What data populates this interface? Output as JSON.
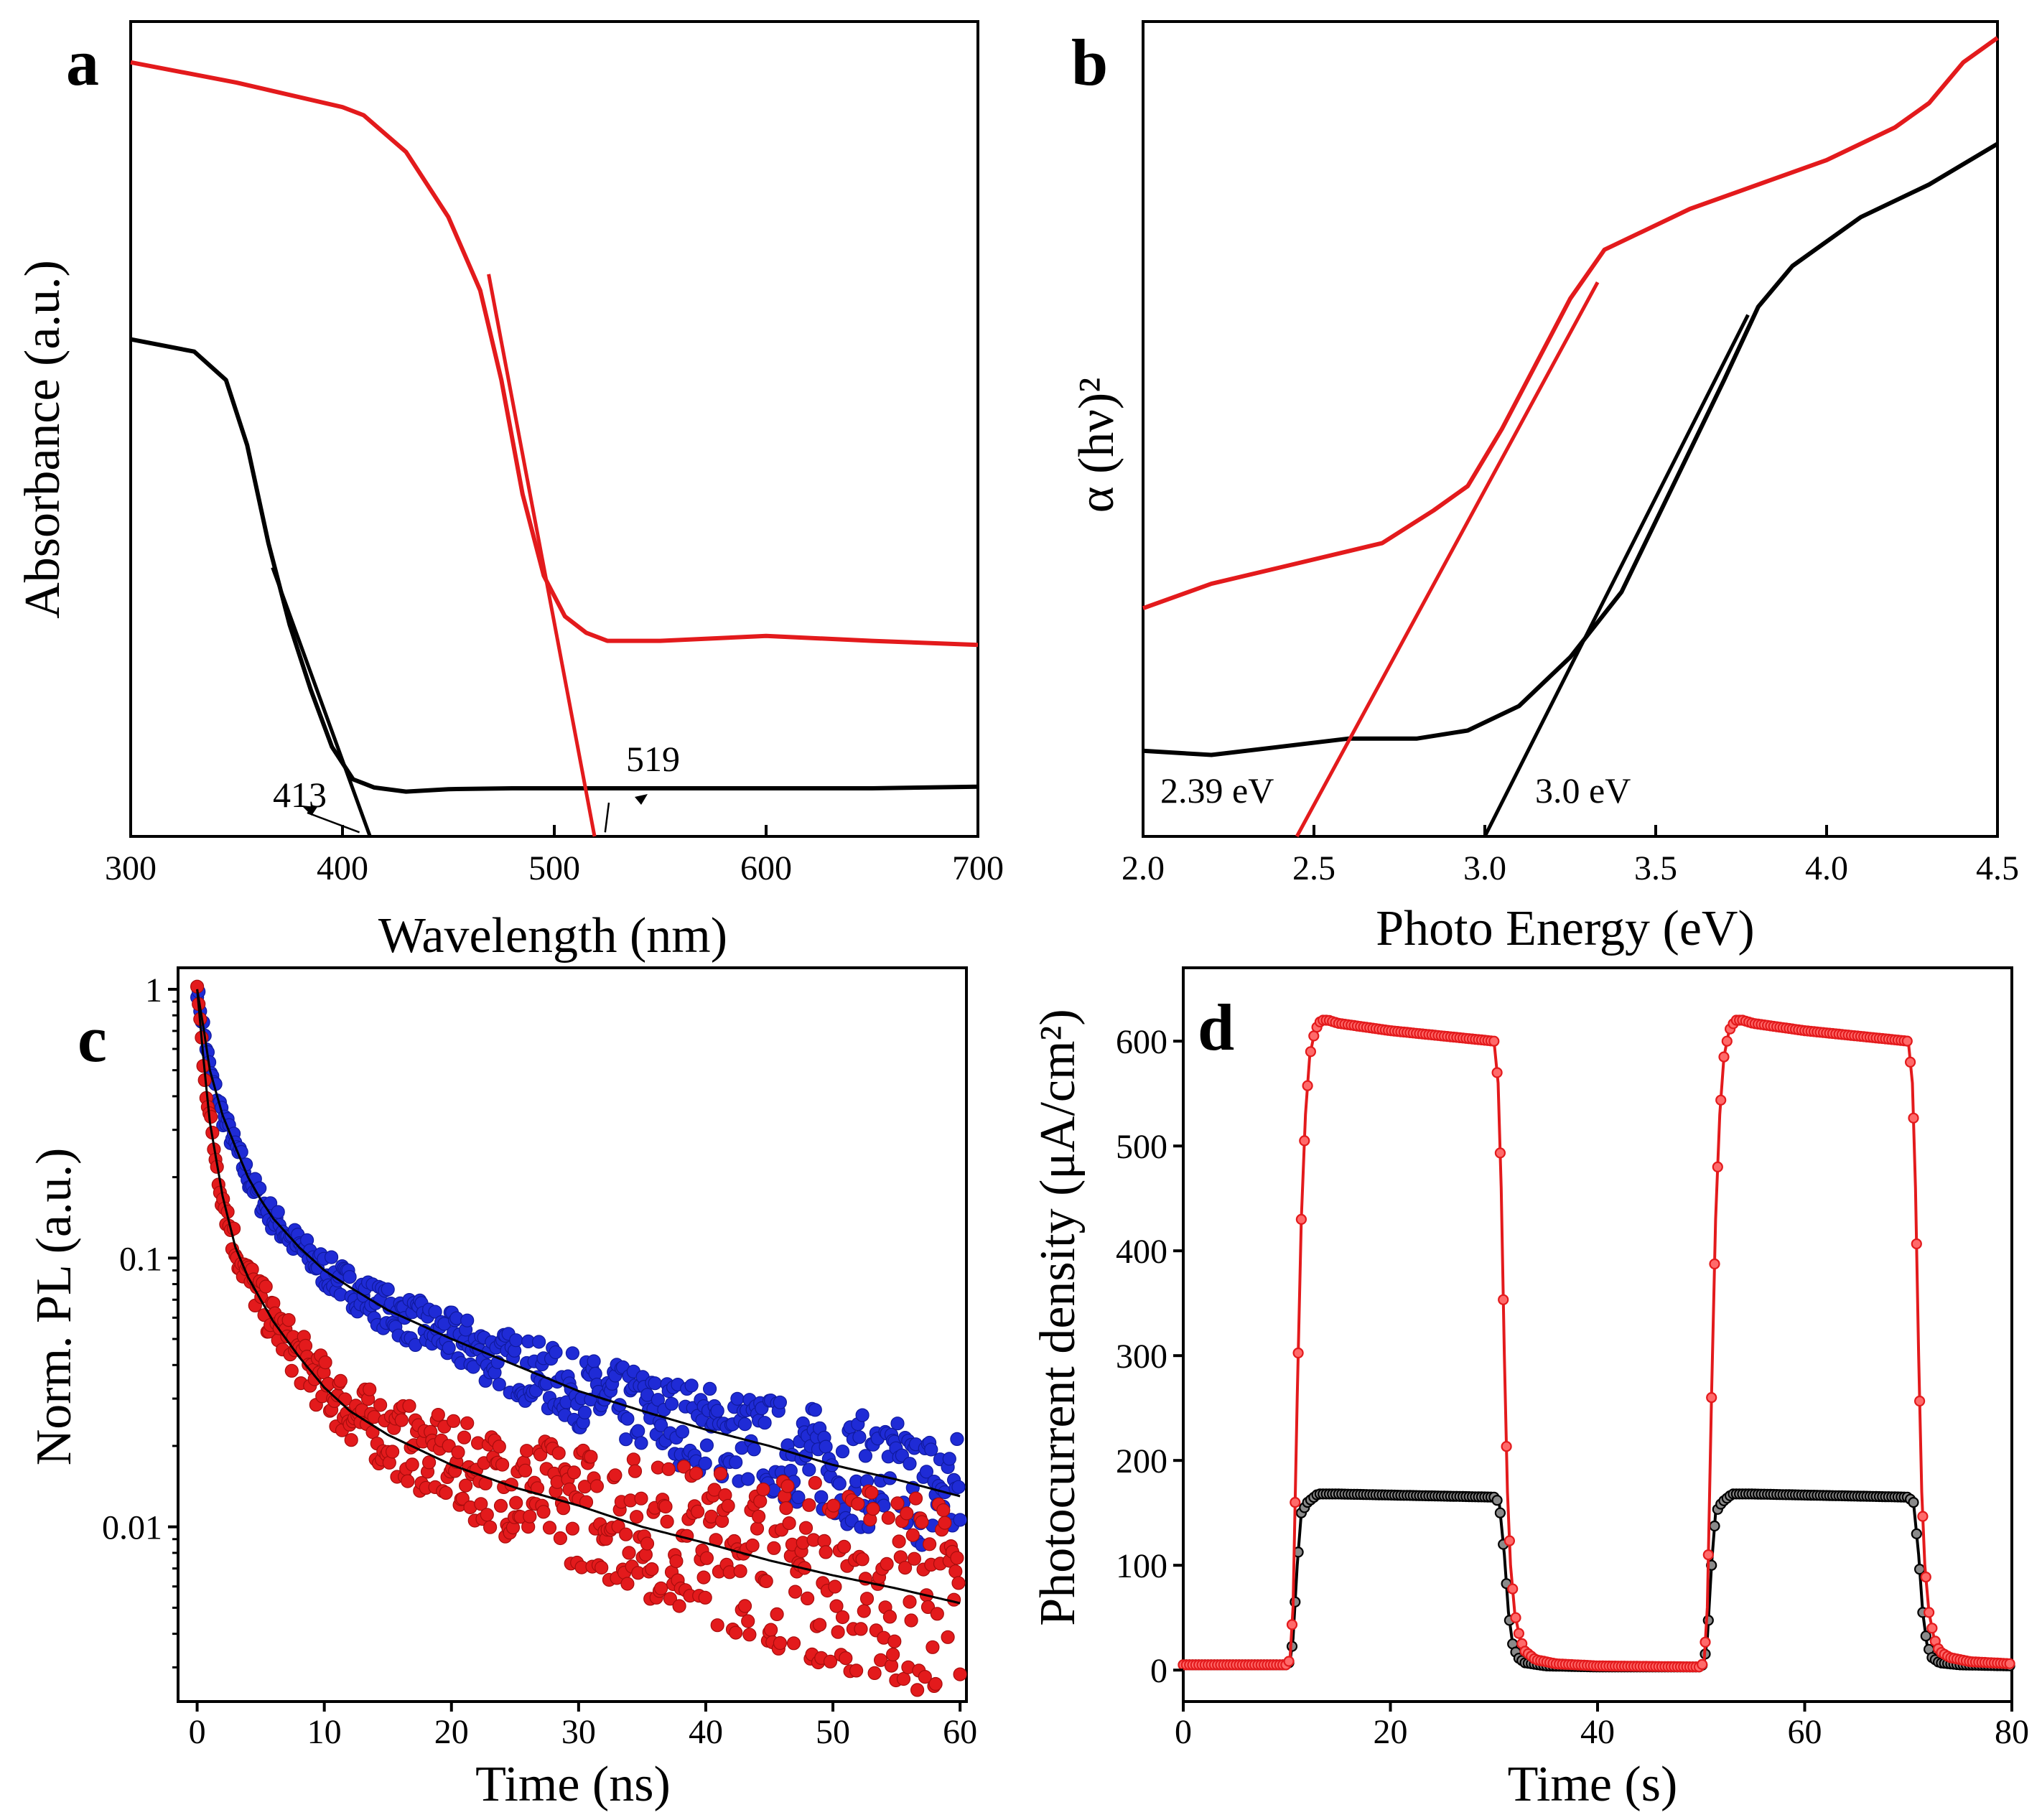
{
  "colors": {
    "black": "#000000",
    "red": "#e31a1c",
    "blue": "#1f2bd6",
    "axis": "#000000"
  },
  "chart_data": [
    {
      "id": "a",
      "type": "line",
      "panel_label": "a",
      "xlabel": "Wavelength (nm)",
      "ylabel": "Absorbance (a.u.)",
      "xlim": [
        300,
        700
      ],
      "ylim": [
        0,
        1
      ],
      "xticks": [
        "300",
        "400",
        "500",
        "600",
        "700"
      ],
      "yticks": [],
      "series": [
        {
          "name": "black",
          "color": "#000000",
          "x": [
            300,
            330,
            345,
            355,
            365,
            375,
            385,
            395,
            405,
            415,
            430,
            450,
            480,
            520,
            560,
            600,
            650,
            700
          ],
          "y": [
            0.61,
            0.595,
            0.56,
            0.48,
            0.36,
            0.26,
            0.18,
            0.11,
            0.07,
            0.06,
            0.055,
            0.058,
            0.059,
            0.059,
            0.059,
            0.059,
            0.059,
            0.061
          ]
        },
        {
          "name": "red",
          "color": "#e31a1c",
          "x": [
            300,
            350,
            400,
            410,
            430,
            450,
            465,
            475,
            485,
            495,
            505,
            515,
            525,
            550,
            600,
            650,
            700
          ],
          "y": [
            0.95,
            0.925,
            0.895,
            0.885,
            0.84,
            0.76,
            0.67,
            0.56,
            0.42,
            0.32,
            0.27,
            0.25,
            0.24,
            0.24,
            0.246,
            0.24,
            0.235
          ]
        }
      ],
      "tangents": [
        {
          "color": "#000000",
          "x": [
            367,
            413
          ],
          "y": [
            0.33,
            0.0
          ]
        },
        {
          "color": "#e31a1c",
          "x": [
            469,
            519
          ],
          "y": [
            0.69,
            0.0
          ]
        }
      ],
      "annotations": [
        {
          "text": "413",
          "x": 382,
          "y": 0.055,
          "arrow_to": [
            408,
            0.005
          ]
        },
        {
          "text": "519",
          "x": 545,
          "y": 0.095,
          "arrow_to": [
            524,
            0.005
          ]
        }
      ]
    },
    {
      "id": "b",
      "type": "line",
      "panel_label": "b",
      "xlabel": "Photo Energy (eV)",
      "ylabel": "α (hν)²",
      "xlim": [
        2.0,
        4.5
      ],
      "ylim": [
        0,
        1
      ],
      "xticks": [
        "2.0",
        "2.5",
        "3.0",
        "3.5",
        "4.0",
        "4.5"
      ],
      "yticks": [],
      "series": [
        {
          "name": "black",
          "color": "#000000",
          "x": [
            2.0,
            2.2,
            2.4,
            2.6,
            2.8,
            2.95,
            3.1,
            3.25,
            3.4,
            3.55,
            3.7,
            3.8,
            3.9,
            4.1,
            4.3,
            4.5
          ],
          "y": [
            0.105,
            0.1,
            0.11,
            0.12,
            0.12,
            0.13,
            0.16,
            0.22,
            0.3,
            0.43,
            0.56,
            0.65,
            0.7,
            0.76,
            0.8,
            0.85
          ]
        },
        {
          "name": "red",
          "color": "#e31a1c",
          "x": [
            2.0,
            2.2,
            2.4,
            2.6,
            2.7,
            2.85,
            2.95,
            3.05,
            3.15,
            3.25,
            3.35,
            3.45,
            3.6,
            3.8,
            4.0,
            4.2,
            4.3,
            4.4,
            4.5
          ],
          "y": [
            0.28,
            0.31,
            0.33,
            0.35,
            0.36,
            0.4,
            0.43,
            0.5,
            0.58,
            0.66,
            0.72,
            0.74,
            0.77,
            0.8,
            0.83,
            0.87,
            0.9,
            0.95,
            0.98
          ]
        }
      ],
      "tangents": [
        {
          "color": "#000000",
          "x": [
            3.0,
            3.77
          ],
          "y": [
            0.0,
            0.64
          ]
        },
        {
          "color": "#e31a1c",
          "x": [
            2.45,
            3.33
          ],
          "y": [
            0.0,
            0.68
          ]
        }
      ],
      "annotations": [
        {
          "text": "2.39 eV",
          "x": 2.06,
          "y": 0.045
        },
        {
          "text": "3.0 eV",
          "x": 3.14,
          "y": 0.045
        }
      ]
    },
    {
      "id": "c",
      "type": "scatter",
      "panel_label": "c",
      "xlabel": "Time (ns)",
      "ylabel": "Norm. PL (a.u.)",
      "xlim": [
        -1.5,
        60.5
      ],
      "ylim_log10": [
        -2.65,
        0.08
      ],
      "xticks": [
        "0",
        "10",
        "20",
        "30",
        "40",
        "50",
        "60"
      ],
      "yticks": [
        "1",
        "0.1",
        "0.01"
      ],
      "series": [
        {
          "name": "blue",
          "color": "#1f2bd6",
          "fit_color": "#000000",
          "x": [
            0,
            0.5,
            1,
            2,
            3,
            4,
            5,
            6,
            8,
            10,
            12,
            15,
            20,
            25,
            30,
            35,
            40,
            45,
            50,
            55,
            60
          ],
          "y": [
            1.0,
            0.72,
            0.5,
            0.34,
            0.26,
            0.2,
            0.165,
            0.14,
            0.11,
            0.09,
            0.078,
            0.064,
            0.05,
            0.04,
            0.032,
            0.027,
            0.023,
            0.02,
            0.017,
            0.015,
            0.013
          ]
        },
        {
          "name": "red",
          "color": "#e31a1c",
          "fit_color": "#000000",
          "x": [
            0,
            0.5,
            1,
            2,
            3,
            4,
            5,
            6,
            8,
            10,
            12,
            15,
            20,
            25,
            30,
            35,
            40,
            45,
            50,
            55,
            60
          ],
          "y": [
            1.0,
            0.55,
            0.32,
            0.17,
            0.11,
            0.085,
            0.07,
            0.058,
            0.043,
            0.033,
            0.027,
            0.022,
            0.017,
            0.014,
            0.012,
            0.01,
            0.0087,
            0.0075,
            0.0066,
            0.0059,
            0.0052
          ]
        }
      ]
    },
    {
      "id": "d",
      "type": "line",
      "panel_label": "d",
      "xlabel": "Time (s)",
      "ylabel": "Photocurrent density (μA/cm²)",
      "xlim": [
        0,
        80
      ],
      "ylim": [
        -30,
        670
      ],
      "xticks": [
        "0",
        "20",
        "40",
        "60",
        "80"
      ],
      "yticks": [
        "0",
        "100",
        "200",
        "300",
        "400",
        "500",
        "600"
      ],
      "ytick_values": [
        0,
        100,
        200,
        300,
        400,
        500,
        600
      ],
      "series": [
        {
          "name": "black",
          "color": "#000000",
          "x": [
            0,
            10,
            10.3,
            10.6,
            11,
            11.4,
            12,
            13,
            15,
            20,
            25,
            30,
            30.5,
            31,
            31.4,
            31.8,
            32.3,
            33,
            35,
            40,
            50,
            50.3,
            50.6,
            51,
            51.4,
            52,
            53,
            55,
            60,
            65,
            70,
            70.5,
            71,
            71.4,
            71.8,
            72.3,
            73,
            75,
            80
          ],
          "y": [
            5,
            5,
            8,
            30,
            100,
            150,
            160,
            168,
            168,
            167,
            166,
            165,
            160,
            110,
            55,
            25,
            12,
            7,
            4,
            3,
            3,
            8,
            30,
            100,
            150,
            160,
            168,
            168,
            167,
            166,
            165,
            160,
            110,
            55,
            25,
            12,
            7,
            5,
            4
          ]
        },
        {
          "name": "red",
          "color": "#e31a1c",
          "x": [
            0,
            10,
            10.3,
            10.6,
            11,
            11.4,
            11.8,
            12.2,
            12.7,
            13.3,
            14,
            15,
            20,
            25,
            30,
            30.4,
            30.7,
            31,
            31.3,
            31.6,
            32,
            32.5,
            33,
            34,
            36,
            40,
            50,
            50.3,
            50.6,
            51,
            51.4,
            51.8,
            52.2,
            52.7,
            53.3,
            54,
            55,
            60,
            65,
            70,
            70.4,
            70.7,
            71,
            71.3,
            71.6,
            72,
            72.5,
            73,
            74,
            76,
            80
          ],
          "y": [
            5,
            5,
            10,
            60,
            260,
            430,
            530,
            585,
            610,
            620,
            620,
            617,
            610,
            605,
            600,
            560,
            460,
            300,
            170,
            100,
            55,
            30,
            18,
            10,
            6,
            4,
            3,
            10,
            60,
            260,
            430,
            530,
            585,
            610,
            620,
            620,
            617,
            610,
            605,
            600,
            560,
            460,
            300,
            170,
            100,
            55,
            30,
            18,
            12,
            8,
            6
          ]
        }
      ]
    }
  ]
}
